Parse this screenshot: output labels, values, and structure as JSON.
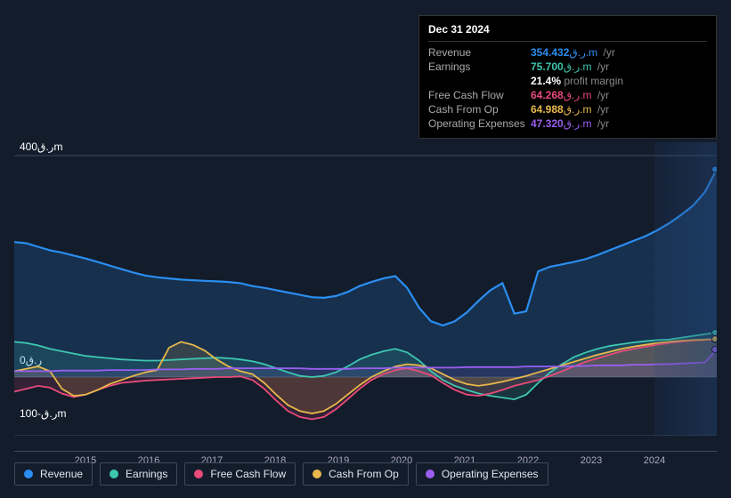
{
  "background_color": "#131c2b",
  "tooltip": {
    "date": "Dec 31 2024",
    "rows": [
      {
        "label": "Revenue",
        "value": "354.432",
        "color": "#2a8ef0",
        "unit": "ر.ق.m /yr"
      },
      {
        "label": "Earnings",
        "value": "75.700",
        "color": "#3ec7b0",
        "unit": "ر.ق.m /yr"
      },
      {
        "label": "",
        "value": "21.4%",
        "suffix": " profit margin",
        "is_sub": true
      },
      {
        "label": "Free Cash Flow",
        "value": "64.268",
        "color": "#e84b7a",
        "unit": "ر.ق.m /yr"
      },
      {
        "label": "Cash From Op",
        "value": "64.988",
        "color": "#e8b84b",
        "unit": "ر.ق.m /yr"
      },
      {
        "label": "Operating Expenses",
        "value": "47.320",
        "color": "#9a5ff0",
        "unit": "ر.ق.m /yr"
      }
    ]
  },
  "chart": {
    "ylim": [
      -100,
      400
    ],
    "ytick_top": "ر.ق400m",
    "ytick_zero": "ر.ق0",
    "ytick_bottom": "ر.ق-100m",
    "x_years": [
      "2015",
      "2016",
      "2017",
      "2018",
      "2019",
      "2020",
      "2021",
      "2022",
      "2023",
      "2024"
    ],
    "grid_color": "#3a4a5c",
    "series": {
      "revenue": {
        "color": "#2a8ef0",
        "fill_opacity": 0.18,
        "points": [
          230,
          228,
          222,
          216,
          212,
          207,
          202,
          196,
          190,
          184,
          178,
          173,
          170,
          168,
          166,
          165,
          164,
          163,
          162,
          160,
          155,
          152,
          148,
          144,
          140,
          136,
          135,
          138,
          145,
          155,
          162,
          168,
          172,
          152,
          118,
          95,
          88,
          95,
          110,
          130,
          148,
          160,
          108,
          112,
          180,
          188,
          192,
          196,
          201,
          208,
          216,
          224,
          232,
          240,
          250,
          262,
          276,
          292,
          315,
          354
        ]
      },
      "earnings": {
        "color": "#3ec7b0",
        "fill_opacity": 0.15,
        "points": [
          60,
          58,
          54,
          48,
          44,
          40,
          36,
          34,
          32,
          30,
          29,
          28,
          28,
          29,
          30,
          31,
          32,
          33,
          32,
          30,
          27,
          22,
          15,
          8,
          2,
          0,
          2,
          8,
          18,
          30,
          38,
          44,
          48,
          42,
          28,
          10,
          -5,
          -15,
          -22,
          -28,
          -32,
          -35,
          -38,
          -30,
          -10,
          8,
          22,
          34,
          42,
          48,
          53,
          56,
          59,
          61,
          63,
          64,
          67,
          70,
          73,
          76
        ]
      },
      "freecashflow": {
        "color": "#e84b7a",
        "fill_opacity": 0.15,
        "points": [
          -25,
          -20,
          -15,
          -18,
          -28,
          -34,
          -30,
          -22,
          -15,
          -10,
          -8,
          -6,
          -5,
          -4,
          -3,
          -2,
          -1,
          0,
          0,
          1,
          -5,
          -20,
          -40,
          -58,
          -68,
          -72,
          -68,
          -55,
          -38,
          -20,
          -5,
          5,
          12,
          15,
          10,
          3,
          -10,
          -22,
          -30,
          -32,
          -28,
          -22,
          -15,
          -10,
          -5,
          2,
          10,
          18,
          26,
          32,
          38,
          44,
          48,
          52,
          55,
          58,
          60,
          62,
          63,
          64
        ]
      },
      "cashfromop": {
        "color": "#e8b84b",
        "fill_opacity": 0.15,
        "points": [
          10,
          14,
          18,
          10,
          -20,
          -32,
          -30,
          -22,
          -12,
          -5,
          2,
          8,
          12,
          50,
          60,
          55,
          45,
          30,
          18,
          10,
          5,
          -10,
          -30,
          -48,
          -58,
          -62,
          -58,
          -46,
          -30,
          -14,
          0,
          10,
          18,
          22,
          20,
          15,
          5,
          -5,
          -12,
          -15,
          -12,
          -8,
          -3,
          2,
          8,
          14,
          20,
          26,
          32,
          38,
          43,
          48,
          52,
          55,
          58,
          60,
          62,
          63,
          64,
          65
        ]
      },
      "opex": {
        "color": "#9a5ff0",
        "fill_opacity": 0.12,
        "points": [
          10,
          10,
          10,
          10,
          11,
          11,
          11,
          11,
          12,
          12,
          12,
          12,
          13,
          13,
          13,
          14,
          14,
          14,
          15,
          15,
          15,
          15,
          15,
          15,
          15,
          14,
          14,
          14,
          14,
          15,
          15,
          15,
          16,
          16,
          16,
          16,
          16,
          16,
          17,
          17,
          17,
          17,
          17,
          18,
          18,
          18,
          18,
          19,
          19,
          20,
          20,
          20,
          21,
          21,
          22,
          22,
          23,
          24,
          25,
          47
        ]
      }
    }
  },
  "legend": [
    {
      "label": "Revenue",
      "color": "#2a8ef0"
    },
    {
      "label": "Earnings",
      "color": "#3ec7b0"
    },
    {
      "label": "Free Cash Flow",
      "color": "#e84b7a"
    },
    {
      "label": "Cash From Op",
      "color": "#e8b84b"
    },
    {
      "label": "Operating Expenses",
      "color": "#9a5ff0"
    }
  ]
}
